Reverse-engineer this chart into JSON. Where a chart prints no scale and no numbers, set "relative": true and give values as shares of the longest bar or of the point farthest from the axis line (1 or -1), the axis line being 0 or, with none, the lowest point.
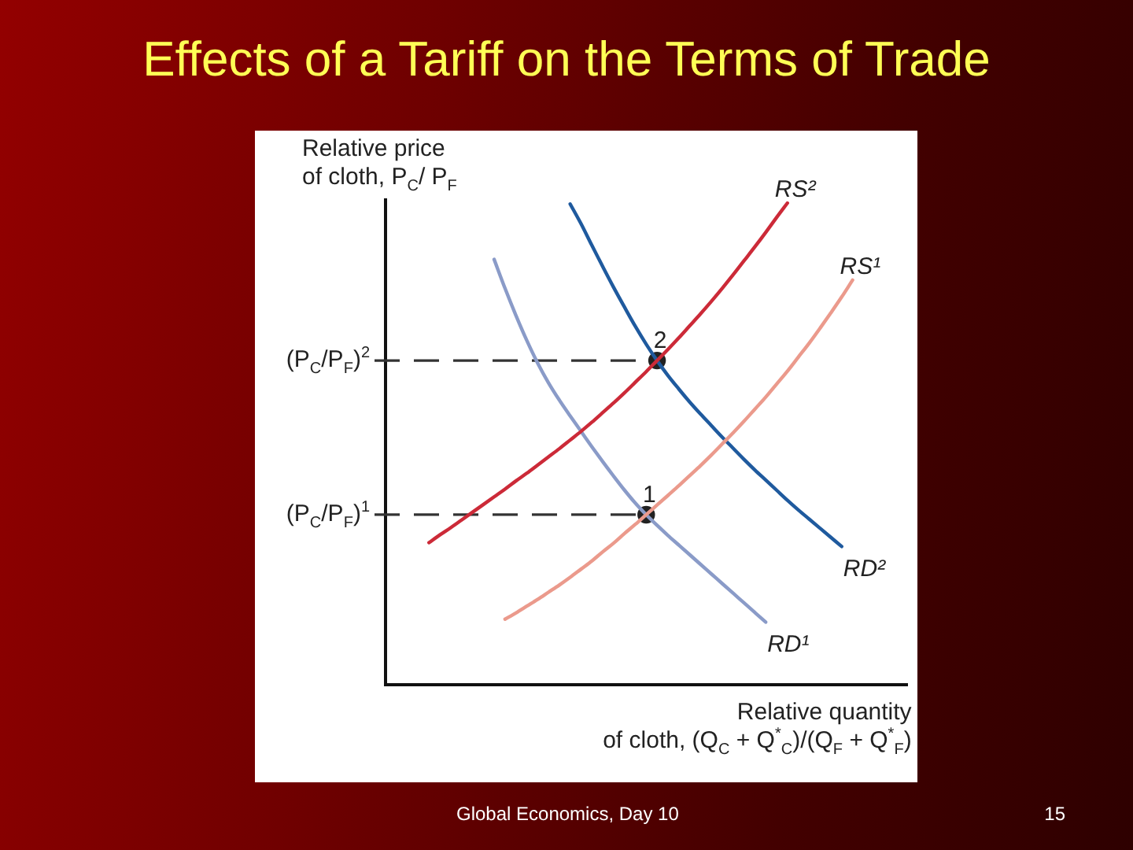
{
  "chart_data": {
    "type": "line",
    "title": "Effects of a Tariff on the Terms of Trade",
    "ylabel": "Relative price\nof cloth, P$_{C}$/ P$_{F}$",
    "xlabel": "Relative quantity\nof cloth, (Q$_{C}$ + Q$^{*}$$_{C}$)/(Q$_{F}$ + Q$^{*}$$_{F}$)",
    "relative": true,
    "tick_labels": false,
    "categories": [
      null,
      null,
      null,
      null,
      null,
      null,
      null,
      null,
      null,
      null,
      null,
      null,
      null,
      null,
      null,
      null,
      null,
      null,
      null,
      null,
      null,
      null,
      null,
      null,
      null,
      null,
      null,
      null,
      null,
      null,
      null,
      null,
      null,
      null,
      null,
      null,
      null,
      null,
      null,
      null,
      null,
      null,
      null,
      null,
      null,
      null,
      null,
      null,
      null
    ],
    "series": [
      {
        "name": "RS²",
        "color": "#cc2a38",
        "values": [
          null,
          null,
          null,
          null,
          0.295,
          0.311,
          0.326,
          0.342,
          0.358,
          0.374,
          0.39,
          0.406,
          0.423,
          0.439,
          0.456,
          0.473,
          0.49,
          0.508,
          0.526,
          0.545,
          0.565,
          0.585,
          0.606,
          0.628,
          0.65,
          0.673,
          0.696,
          0.72,
          0.745,
          0.77,
          0.796,
          0.823,
          0.851,
          0.88,
          0.909,
          0.939,
          0.97,
          1,
          null,
          null,
          null,
          null,
          null,
          null,
          null,
          null,
          null,
          null,
          null
        ]
      },
      {
        "name": "RS¹",
        "color": "#eb9a8c",
        "values": [
          null,
          null,
          null,
          null,
          null,
          null,
          null,
          null,
          null,
          null,
          null,
          0.136,
          0.149,
          0.163,
          0.177,
          0.192,
          0.207,
          0.223,
          0.24,
          0.257,
          0.276,
          0.294,
          0.314,
          0.333,
          0.353,
          0.373,
          0.393,
          0.413,
          0.434,
          0.455,
          0.477,
          0.5,
          0.523,
          0.547,
          0.572,
          0.597,
          0.624,
          0.651,
          0.68,
          0.709,
          0.74,
          0.772,
          0.805,
          0.84,
          null,
          null,
          null,
          null,
          null
        ]
      },
      {
        "name": "RD²",
        "color": "#1f5a9e",
        "values": [
          null,
          null,
          null,
          null,
          null,
          null,
          null,
          null,
          null,
          null,
          null,
          null,
          null,
          null,
          null,
          null,
          null,
          0.998,
          0.957,
          0.912,
          0.868,
          0.825,
          0.784,
          0.744,
          0.707,
          0.673,
          0.642,
          0.614,
          0.587,
          0.562,
          0.538,
          0.514,
          0.491,
          0.468,
          0.446,
          0.425,
          0.404,
          0.383,
          0.363,
          0.344,
          0.325,
          0.306,
          0.287,
          null,
          null,
          null,
          null,
          null,
          null
        ]
      },
      {
        "name": "RD¹",
        "color": "#8a9bc8",
        "values": [
          null,
          null,
          null,
          null,
          null,
          null,
          null,
          null,
          null,
          null,
          0.883,
          0.823,
          0.767,
          0.715,
          0.668,
          0.627,
          0.591,
          0.558,
          0.526,
          0.494,
          0.463,
          0.433,
          0.404,
          0.377,
          0.353,
          0.331,
          0.31,
          0.29,
          0.27,
          0.25,
          0.23,
          0.21,
          0.19,
          0.17,
          0.15,
          0.13,
          null,
          null,
          null,
          null,
          null,
          null,
          null,
          null,
          null,
          null,
          null,
          null,
          null
        ]
      },
      {
        "name": "1",
        "marker": "circle",
        "color": "#222222",
        "values": [
          null,
          null,
          null,
          null,
          null,
          null,
          null,
          null,
          null,
          null,
          null,
          null,
          null,
          null,
          null,
          null,
          null,
          null,
          null,
          null,
          null,
          null,
          null,
          null,
          0.353,
          null,
          null,
          null,
          null,
          null,
          null,
          null,
          null,
          null,
          null,
          null,
          null,
          null,
          null,
          null,
          null,
          null,
          null,
          null,
          null,
          null,
          null,
          null,
          null
        ]
      },
      {
        "name": "2",
        "marker": "circle",
        "color": "#222222",
        "values": [
          null,
          null,
          null,
          null,
          null,
          null,
          null,
          null,
          null,
          null,
          null,
          null,
          null,
          null,
          null,
          null,
          null,
          null,
          null,
          null,
          null,
          null,
          null,
          null,
          null,
          0.673,
          null,
          null,
          null,
          null,
          null,
          null,
          null,
          null,
          null,
          null,
          null,
          null,
          null,
          null,
          null,
          null,
          null,
          null,
          null,
          null,
          null,
          null,
          null
        ]
      }
    ],
    "ref_lines": [
      {
        "axis": "y",
        "value": 0.673,
        "label": "(P$_{C}$/P$_{F}$)$^{2}$",
        "line_style": "dashed",
        "color": "#333333"
      },
      {
        "axis": "y",
        "value": 0.353,
        "label": "(P$_{C}$/P$_{F}$)$^{1}$",
        "line_style": "dashed",
        "color": "#333333"
      }
    ],
    "annotations": [
      "Global Economics, Day 10",
      "15"
    ]
  }
}
